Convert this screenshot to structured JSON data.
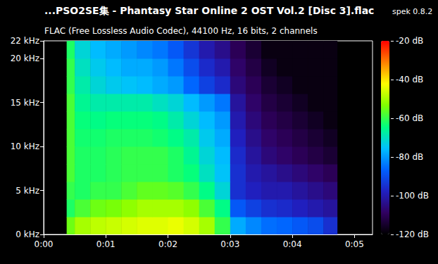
{
  "chart_data": {
    "type": "heatmap",
    "title": "...PSO2SE集 - Phantasy Star Online 2 OST Vol.2 [Disc 3].flac",
    "subtitle": "FLAC (Free Lossless Audio Codec), 44100 Hz, 16 bits, 2 channels",
    "annotations": [
      "spek 0.8.2"
    ],
    "grid": false,
    "xlim": [
      0,
      5.29
    ],
    "xticks": [
      {
        "value": 0,
        "label": "0:00"
      },
      {
        "value": 1,
        "label": "0:01"
      },
      {
        "value": 2,
        "label": "0:02"
      },
      {
        "value": 3,
        "label": "0:03"
      },
      {
        "value": 4,
        "label": "0:04"
      },
      {
        "value": 5,
        "label": "0:05"
      }
    ],
    "ylim": [
      0,
      22
    ],
    "yticks": [
      {
        "value": 0,
        "label": "0 kHz"
      },
      {
        "value": 5,
        "label": "5 kHz"
      },
      {
        "value": 10,
        "label": "10 kHz"
      },
      {
        "value": 15,
        "label": "15 kHz"
      },
      {
        "value": 20,
        "label": "20 kHz"
      },
      {
        "value": 22,
        "label": "22 kHz"
      }
    ],
    "x_edges": [
      0.37,
      0.5,
      0.75,
      1.0,
      1.25,
      1.5,
      1.75,
      2.0,
      2.25,
      2.5,
      2.75,
      3.0,
      3.25,
      3.5,
      3.75,
      4.0,
      4.25,
      4.5,
      4.72
    ],
    "y_edges": [
      0,
      2,
      4,
      6,
      8,
      10,
      12,
      14,
      16,
      18,
      20,
      22
    ],
    "cells": [
      [
        -55,
        -50,
        -48,
        -47,
        -46,
        -45,
        -45,
        -44,
        -46,
        -50,
        -60,
        -78,
        -82,
        -85,
        -86,
        -88,
        -90,
        -95
      ],
      [
        -62,
        -58,
        -55,
        -54,
        -52,
        -50,
        -50,
        -50,
        -52,
        -58,
        -65,
        -88,
        -92,
        -95,
        -96,
        -98,
        -100,
        -102
      ],
      [
        -60,
        -62,
        -60,
        -60,
        -58,
        -56,
        -56,
        -57,
        -60,
        -65,
        -72,
        -95,
        -98,
        -100,
        -100,
        -102,
        -104,
        -106
      ],
      [
        -58,
        -62,
        -62,
        -61,
        -60,
        -60,
        -60,
        -62,
        -64,
        -70,
        -75,
        -95,
        -100,
        -102,
        -104,
        -106,
        -108,
        -110
      ],
      [
        -58,
        -62,
        -62,
        -61,
        -60,
        -60,
        -60,
        -62,
        -66,
        -72,
        -76,
        -96,
        -102,
        -106,
        -108,
        -110,
        -112,
        -114
      ],
      [
        -58,
        -63,
        -63,
        -62,
        -62,
        -62,
        -63,
        -65,
        -68,
        -74,
        -78,
        -98,
        -104,
        -108,
        -110,
        -112,
        -114,
        -116
      ],
      [
        -58,
        -64,
        -65,
        -64,
        -64,
        -64,
        -65,
        -68,
        -72,
        -76,
        -80,
        -100,
        -106,
        -110,
        -112,
        -114,
        -116,
        -118
      ],
      [
        -58,
        -66,
        -68,
        -68,
        -68,
        -68,
        -70,
        -72,
        -76,
        -80,
        -84,
        -102,
        -108,
        -112,
        -114,
        -116,
        -118,
        -118
      ],
      [
        -60,
        -68,
        -72,
        -74,
        -75,
        -76,
        -78,
        -80,
        -86,
        -92,
        -96,
        -106,
        -110,
        -114,
        -116,
        -118,
        -118,
        -118
      ],
      [
        -60,
        -70,
        -74,
        -76,
        -78,
        -78,
        -80,
        -84,
        -90,
        -96,
        -100,
        -108,
        -112,
        -116,
        -118,
        -118,
        -118,
        -118
      ],
      [
        -62,
        -72,
        -76,
        -78,
        -80,
        -82,
        -84,
        -88,
        -94,
        -100,
        -104,
        -110,
        -114,
        -118,
        -118,
        -118,
        -118,
        -118
      ]
    ],
    "colorbar": {
      "range": [
        -120,
        -20
      ],
      "ticks": [
        {
          "value": -20,
          "label": "-20 dB"
        },
        {
          "value": -40,
          "label": "-40 dB"
        },
        {
          "value": -60,
          "label": "-60 dB"
        },
        {
          "value": -80,
          "label": "-80 dB"
        },
        {
          "value": -100,
          "label": "-100 dB"
        },
        {
          "value": -120,
          "label": "-120 dB"
        }
      ]
    }
  }
}
